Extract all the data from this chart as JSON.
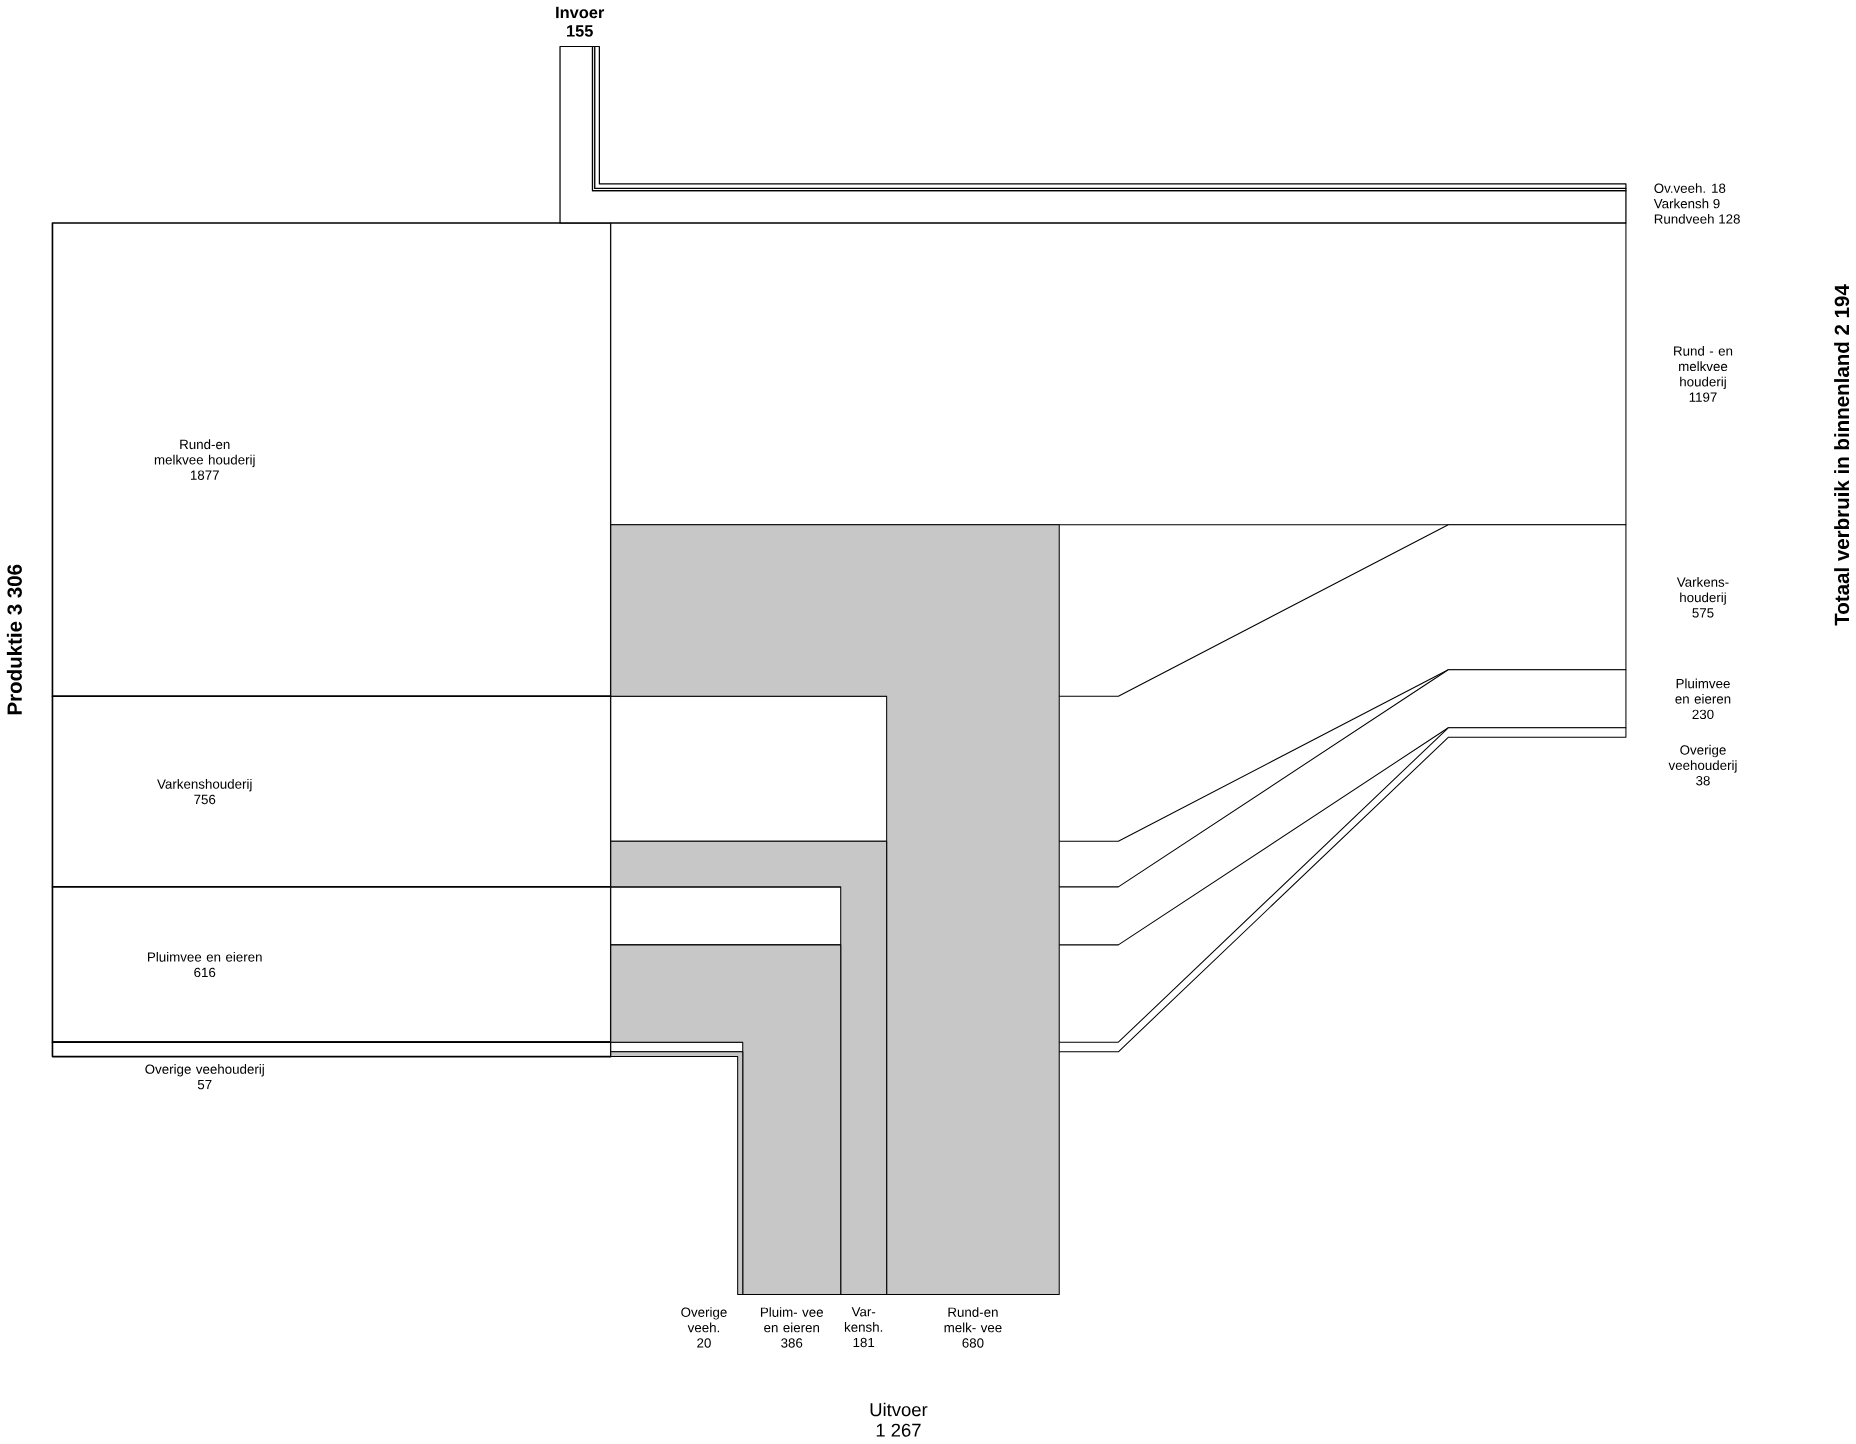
{
  "chart_data": {
    "type": "other",
    "categories": [
      "Rund-en melkvee houderij",
      "Varkenshouderij",
      "Pluimvee en eieren",
      "Overige veehouderij",
      "Rund - en melkvee houderij",
      "Varkens- houderij",
      "Pluimvee en eieren",
      "Overige veehouderij",
      "Overige veeh.",
      "Pluim- vee en eieren",
      "Var- kensh.",
      "Rund-en melk- vee",
      "Ov.veeh.",
      "Varkensh",
      "Rundveeh"
    ],
    "series": [
      {
        "name": "Produktie",
        "values": [
          1877,
          756,
          616,
          57,
          null,
          null,
          null,
          null,
          null,
          null,
          null,
          null,
          null,
          null,
          null
        ]
      },
      {
        "name": "Totaal verbruik in binnenland",
        "values": [
          null,
          null,
          null,
          null,
          1197,
          575,
          230,
          38,
          null,
          null,
          null,
          null,
          null,
          null,
          null
        ]
      },
      {
        "name": "Uitvoer",
        "values": [
          null,
          null,
          null,
          null,
          null,
          null,
          null,
          null,
          20,
          386,
          181,
          680,
          null,
          null,
          null
        ]
      },
      {
        "name": "Invoer",
        "values": [
          null,
          null,
          null,
          null,
          null,
          null,
          null,
          null,
          null,
          null,
          null,
          null,
          18,
          9,
          128
        ]
      }
    ],
    "data_labels": true,
    "totals": [
      "3 306",
      "2 194",
      "1 267",
      "155"
    ]
  }
}
